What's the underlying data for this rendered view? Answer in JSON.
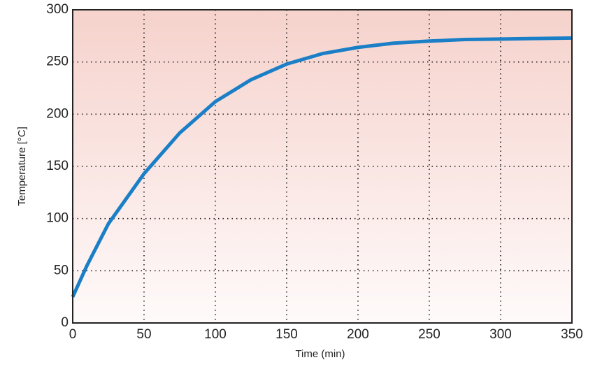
{
  "chart_data": {
    "type": "line",
    "x_label": "Time (min)",
    "y_label": "Temperature [°C]",
    "x": [
      0,
      10,
      25,
      50,
      75,
      100,
      125,
      150,
      175,
      200,
      225,
      250,
      275,
      300,
      325,
      350
    ],
    "series": [
      {
        "name": "Temperature",
        "color": "#1a7fc6",
        "values": [
          25,
          55,
          95,
          143,
          182,
          212,
          233,
          248,
          258,
          264,
          268,
          270,
          271.5,
          272,
          272.5,
          273
        ]
      }
    ],
    "xlim": [
      0,
      350
    ],
    "xticks": [
      0,
      50,
      100,
      150,
      200,
      250,
      300,
      350
    ],
    "ylim": [
      0,
      300
    ],
    "yticks": [
      0,
      50,
      100,
      150,
      200,
      250,
      300
    ],
    "grid": true
  }
}
